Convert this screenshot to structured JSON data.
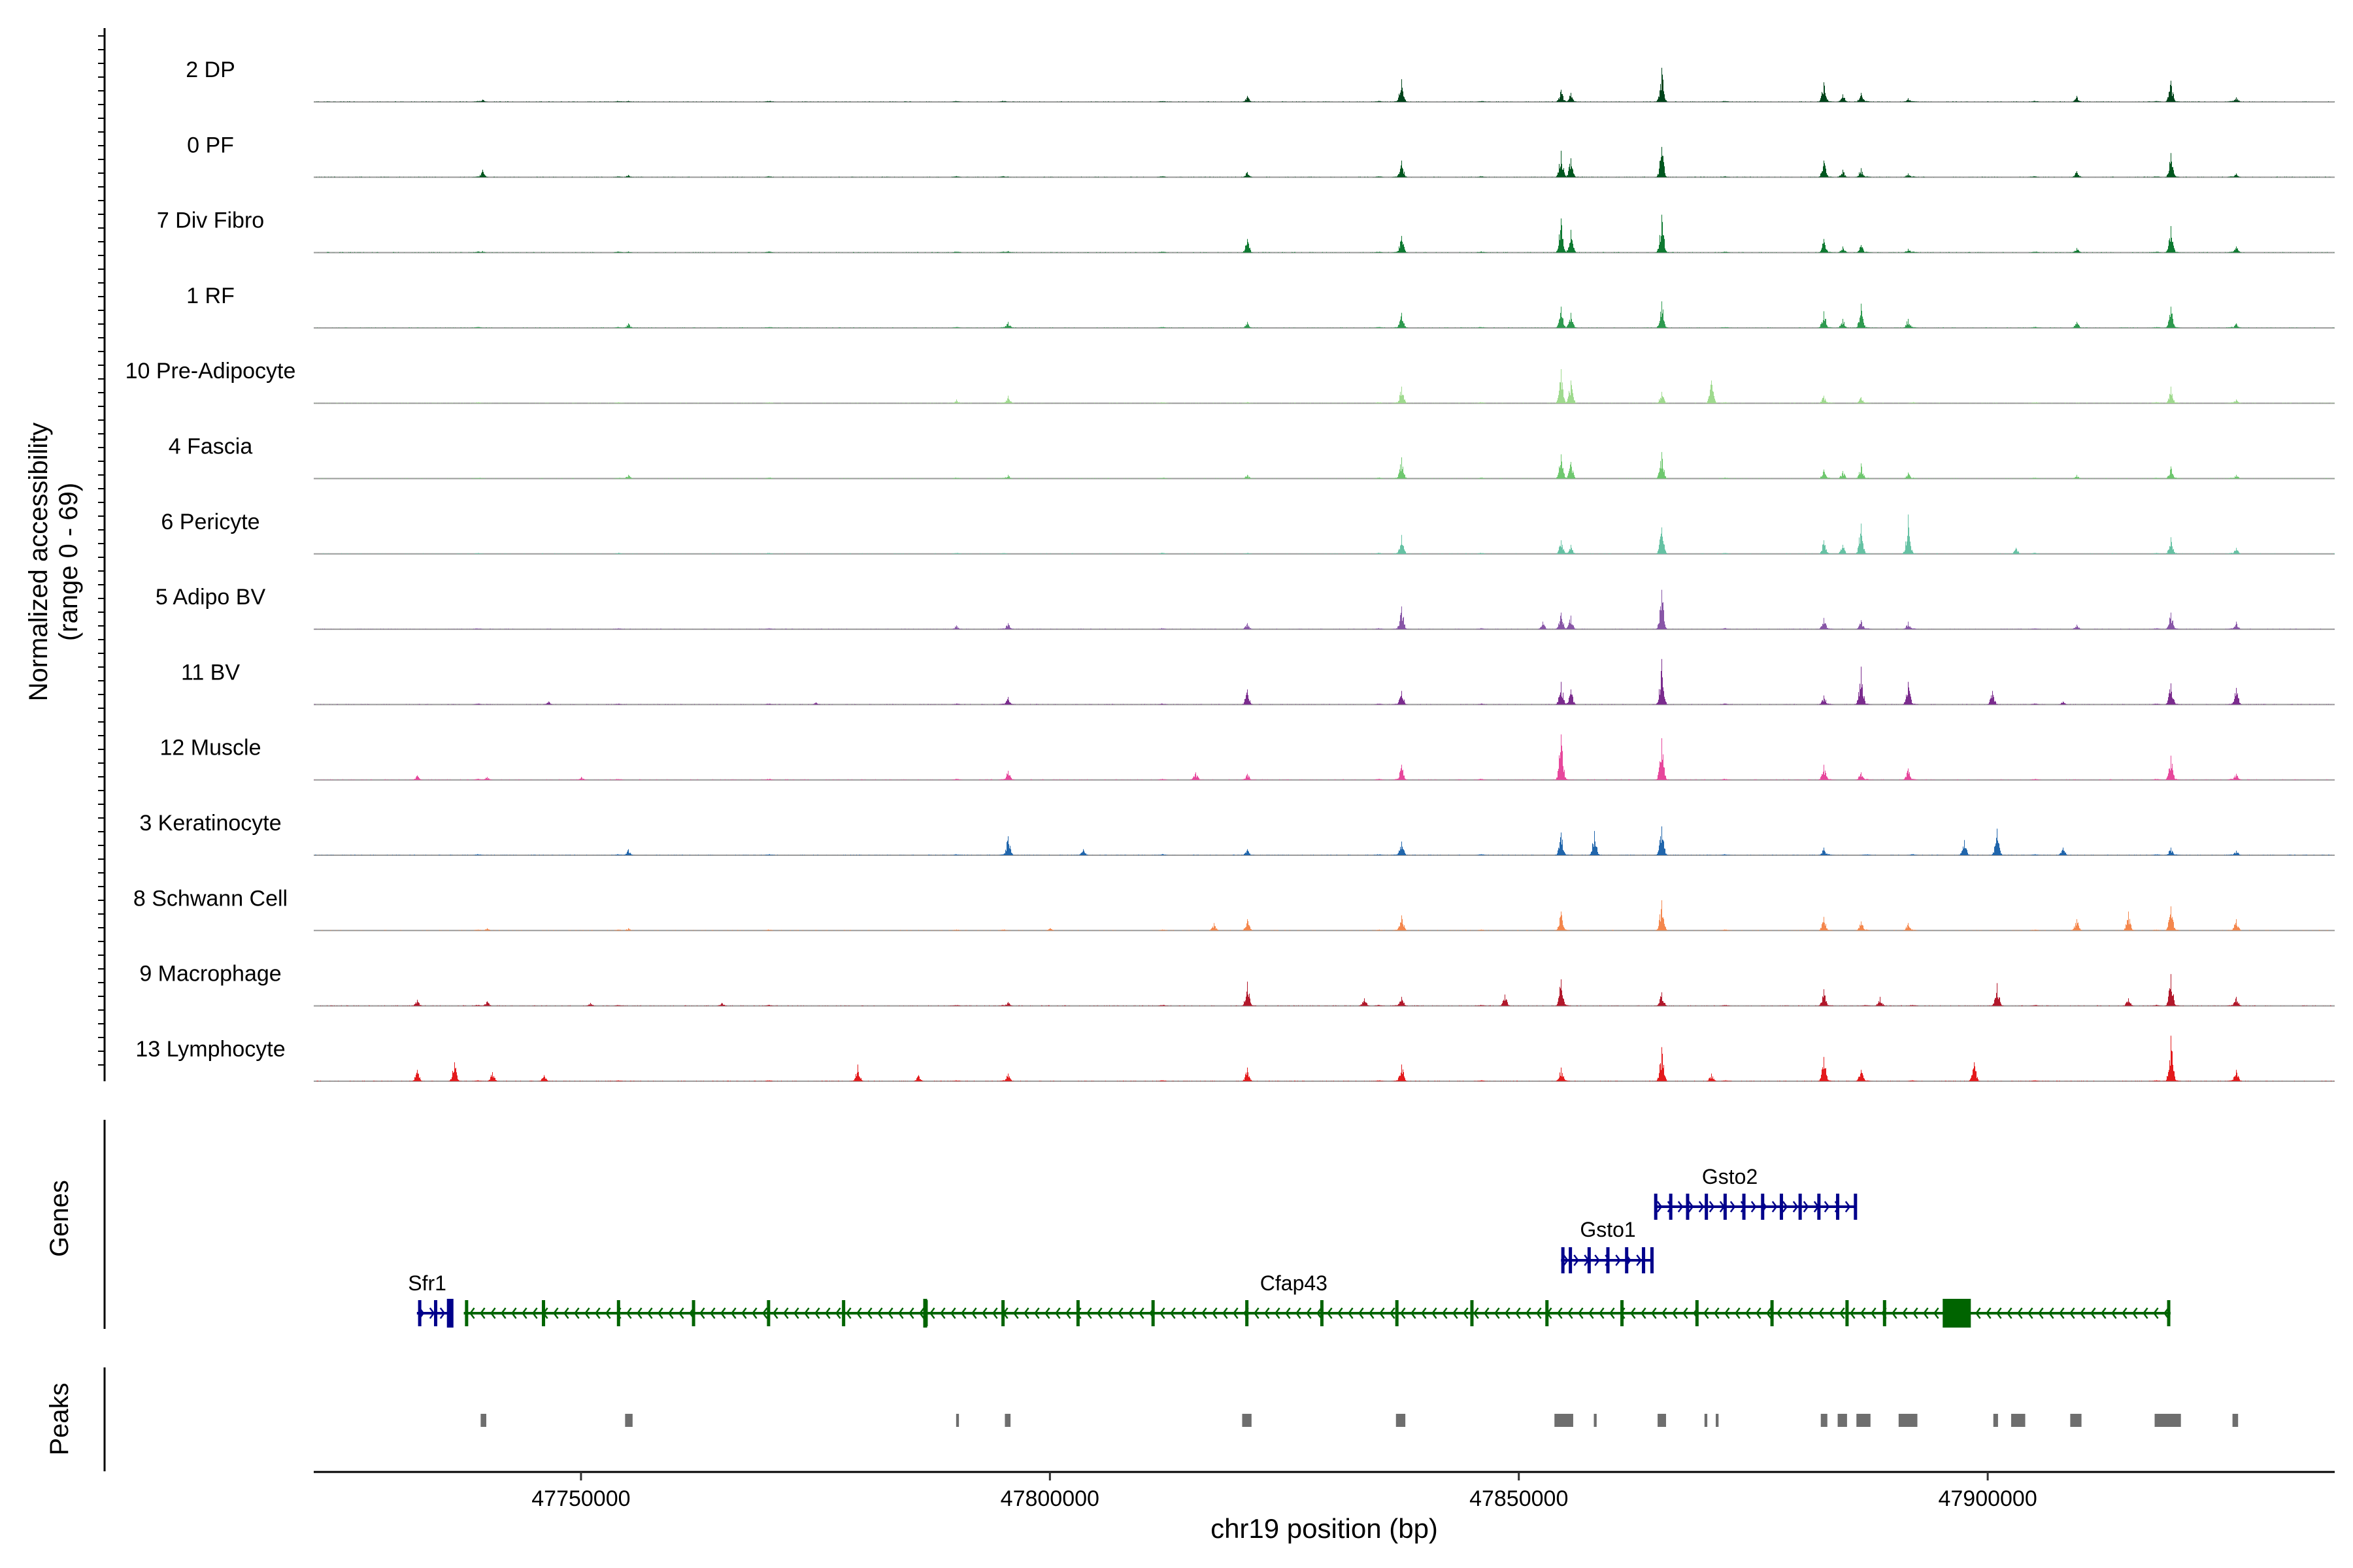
{
  "chart_data": {
    "type": "area",
    "title": "",
    "ylabel": [
      "Normalized accessibility",
      "(range 0 - 69)"
    ],
    "xlabel": "chr19 position (bp)",
    "xlim": [
      47721500,
      47937000
    ],
    "ylim": [
      0,
      69
    ],
    "x_ticks": [
      47750000,
      47800000,
      47850000,
      47900000
    ],
    "x_tick_labels": [
      "47750000",
      "47800000",
      "47850000",
      "47900000"
    ],
    "background_peaks_x": [
      47739000,
      47754000,
      47770000,
      47790000,
      47795000,
      47812000,
      47821000,
      47835000,
      47837000,
      47846000,
      47855000,
      47865000,
      47872000,
      47883000,
      47887000,
      47892000,
      47905000,
      47918000,
      47920000,
      47926000
    ],
    "series": [
      {
        "name": "2 DP",
        "color": "#00441B",
        "peaks": [
          [
            47739500,
            3
          ],
          [
            47755000,
            1.5
          ],
          [
            47821000,
            8
          ],
          [
            47837500,
            30
          ],
          [
            47854500,
            16
          ],
          [
            47855500,
            12
          ],
          [
            47865200,
            45
          ],
          [
            47882500,
            26
          ],
          [
            47884500,
            10
          ],
          [
            47886500,
            12
          ],
          [
            47891500,
            5
          ],
          [
            47909500,
            8
          ],
          [
            47919500,
            28
          ],
          [
            47926500,
            6
          ]
        ]
      },
      {
        "name": "0 PF",
        "color": "#00571F",
        "peaks": [
          [
            47739500,
            10
          ],
          [
            47755000,
            3
          ],
          [
            47821000,
            7
          ],
          [
            47837500,
            22
          ],
          [
            47854500,
            35
          ],
          [
            47855500,
            25
          ],
          [
            47865200,
            40
          ],
          [
            47882500,
            22
          ],
          [
            47884500,
            10
          ],
          [
            47886500,
            12
          ],
          [
            47891500,
            5
          ],
          [
            47909500,
            8
          ],
          [
            47919500,
            32
          ],
          [
            47926500,
            5
          ]
        ]
      },
      {
        "name": "7 Div Fibro",
        "color": "#0E7A31",
        "peaks": [
          [
            47739500,
            2
          ],
          [
            47755000,
            1.5
          ],
          [
            47795500,
            2
          ],
          [
            47821000,
            18
          ],
          [
            47837500,
            22
          ],
          [
            47854500,
            45
          ],
          [
            47855500,
            30
          ],
          [
            47865200,
            50
          ],
          [
            47882500,
            18
          ],
          [
            47884500,
            8
          ],
          [
            47886500,
            10
          ],
          [
            47891500,
            5
          ],
          [
            47909500,
            6
          ],
          [
            47919500,
            35
          ],
          [
            47926500,
            8
          ]
        ]
      },
      {
        "name": "1 RF",
        "color": "#2E9A4F",
        "peaks": [
          [
            47755000,
            6
          ],
          [
            47795500,
            8
          ],
          [
            47821000,
            8
          ],
          [
            47837500,
            20
          ],
          [
            47854500,
            28
          ],
          [
            47855500,
            20
          ],
          [
            47865200,
            35
          ],
          [
            47882500,
            22
          ],
          [
            47884500,
            12
          ],
          [
            47886500,
            32
          ],
          [
            47891500,
            12
          ],
          [
            47909500,
            8
          ],
          [
            47919500,
            28
          ],
          [
            47926500,
            6
          ]
        ]
      },
      {
        "name": "10 Pre-Adipocyte",
        "color": "#9FDA8E",
        "peaks": [
          [
            47790000,
            5
          ],
          [
            47795500,
            10
          ],
          [
            47837500,
            22
          ],
          [
            47854500,
            45
          ],
          [
            47855500,
            30
          ],
          [
            47865200,
            15
          ],
          [
            47870500,
            30
          ],
          [
            47882500,
            10
          ],
          [
            47886500,
            8
          ],
          [
            47919500,
            22
          ],
          [
            47926500,
            5
          ]
        ]
      },
      {
        "name": "4 Fascia",
        "color": "#6FC86F",
        "peaks": [
          [
            47755000,
            5
          ],
          [
            47795500,
            5
          ],
          [
            47821000,
            5
          ],
          [
            47837500,
            28
          ],
          [
            47854500,
            32
          ],
          [
            47855500,
            22
          ],
          [
            47865200,
            35
          ],
          [
            47882500,
            12
          ],
          [
            47884500,
            10
          ],
          [
            47886500,
            20
          ],
          [
            47891500,
            8
          ],
          [
            47909500,
            5
          ],
          [
            47919500,
            16
          ],
          [
            47926500,
            5
          ]
        ]
      },
      {
        "name": "6 Pericyte",
        "color": "#66C2A4",
        "peaks": [
          [
            47837500,
            25
          ],
          [
            47854500,
            18
          ],
          [
            47855500,
            12
          ],
          [
            47865200,
            35
          ],
          [
            47882500,
            18
          ],
          [
            47884500,
            12
          ],
          [
            47886500,
            40
          ],
          [
            47891500,
            52
          ],
          [
            47903000,
            8
          ],
          [
            47919500,
            22
          ],
          [
            47926500,
            8
          ]
        ]
      },
      {
        "name": "5 Adipo BV",
        "color": "#8856A7",
        "peaks": [
          [
            47790000,
            5
          ],
          [
            47795500,
            8
          ],
          [
            47821000,
            8
          ],
          [
            47837500,
            30
          ],
          [
            47852500,
            10
          ],
          [
            47854500,
            22
          ],
          [
            47855500,
            18
          ],
          [
            47865200,
            52
          ],
          [
            47882500,
            15
          ],
          [
            47886500,
            12
          ],
          [
            47891500,
            10
          ],
          [
            47909500,
            6
          ],
          [
            47919500,
            22
          ],
          [
            47926500,
            10
          ]
        ]
      },
      {
        "name": "11 BV",
        "color": "#7B2C8E",
        "peaks": [
          [
            47746500,
            4
          ],
          [
            47775000,
            3
          ],
          [
            47795500,
            10
          ],
          [
            47821000,
            20
          ],
          [
            47837500,
            18
          ],
          [
            47854500,
            30
          ],
          [
            47855500,
            20
          ],
          [
            47865200,
            60
          ],
          [
            47882500,
            12
          ],
          [
            47886500,
            50
          ],
          [
            47891500,
            30
          ],
          [
            47900500,
            18
          ],
          [
            47908000,
            4
          ],
          [
            47919500,
            28
          ],
          [
            47926500,
            22
          ]
        ]
      },
      {
        "name": "12 Muscle",
        "color": "#E7479C",
        "peaks": [
          [
            47732500,
            6
          ],
          [
            47740000,
            4
          ],
          [
            47750000,
            4
          ],
          [
            47795500,
            12
          ],
          [
            47815500,
            10
          ],
          [
            47821000,
            8
          ],
          [
            47837500,
            20
          ],
          [
            47854500,
            60
          ],
          [
            47865200,
            55
          ],
          [
            47882500,
            20
          ],
          [
            47886500,
            10
          ],
          [
            47891500,
            15
          ],
          [
            47919500,
            32
          ],
          [
            47926500,
            8
          ]
        ]
      },
      {
        "name": "3 Keratinocyte",
        "color": "#2166AC",
        "peaks": [
          [
            47755000,
            8
          ],
          [
            47795500,
            25
          ],
          [
            47803500,
            8
          ],
          [
            47821000,
            8
          ],
          [
            47837500,
            18
          ],
          [
            47854500,
            30
          ],
          [
            47858000,
            32
          ],
          [
            47865200,
            38
          ],
          [
            47882500,
            10
          ],
          [
            47897500,
            20
          ],
          [
            47901000,
            35
          ],
          [
            47908000,
            10
          ],
          [
            47919500,
            10
          ],
          [
            47926500,
            6
          ]
        ]
      },
      {
        "name": "8 Schwann Cell",
        "color": "#F4874D",
        "peaks": [
          [
            47740000,
            3
          ],
          [
            47755000,
            3
          ],
          [
            47800000,
            3
          ],
          [
            47817500,
            10
          ],
          [
            47821000,
            15
          ],
          [
            47837500,
            20
          ],
          [
            47854500,
            25
          ],
          [
            47865200,
            40
          ],
          [
            47882500,
            18
          ],
          [
            47886500,
            12
          ],
          [
            47891500,
            10
          ],
          [
            47909500,
            15
          ],
          [
            47915000,
            25
          ],
          [
            47919500,
            32
          ],
          [
            47926500,
            15
          ]
        ]
      },
      {
        "name": "9 Macrophage",
        "color": "#B2182B",
        "peaks": [
          [
            47732500,
            8
          ],
          [
            47740000,
            6
          ],
          [
            47751000,
            4
          ],
          [
            47765000,
            4
          ],
          [
            47795500,
            5
          ],
          [
            47821000,
            32
          ],
          [
            47833500,
            10
          ],
          [
            47837500,
            12
          ],
          [
            47848500,
            15
          ],
          [
            47854500,
            35
          ],
          [
            47865200,
            18
          ],
          [
            47882500,
            22
          ],
          [
            47888500,
            12
          ],
          [
            47901000,
            30
          ],
          [
            47915000,
            10
          ],
          [
            47919500,
            42
          ],
          [
            47926500,
            12
          ]
        ]
      },
      {
        "name": "13 Lymphocyte",
        "color": "#E41A1C",
        "peaks": [
          [
            47732500,
            15
          ],
          [
            47736500,
            25
          ],
          [
            47740500,
            12
          ],
          [
            47746000,
            8
          ],
          [
            47779500,
            22
          ],
          [
            47786000,
            8
          ],
          [
            47795500,
            10
          ],
          [
            47821000,
            18
          ],
          [
            47837500,
            22
          ],
          [
            47854500,
            18
          ],
          [
            47865200,
            45
          ],
          [
            47870500,
            10
          ],
          [
            47882500,
            32
          ],
          [
            47886500,
            15
          ],
          [
            47898500,
            25
          ],
          [
            47919500,
            60
          ],
          [
            47926500,
            15
          ]
        ]
      }
    ],
    "genes_track": {
      "label": "Genes",
      "genes": [
        {
          "name": "Gsto2",
          "start": 47864500,
          "end": 47886000,
          "strand": "+",
          "color": "#00008B",
          "exons": [
            47864600,
            47866200,
            47868000,
            47870000,
            47872000,
            47874000,
            47876000,
            47878000,
            47880000,
            47882000,
            47884000,
            47885900
          ]
        },
        {
          "name": "Gsto1",
          "start": 47854500,
          "end": 47864300,
          "strand": "+",
          "color": "#00008B",
          "exons": [
            47854700,
            47855500,
            47857500,
            47859500,
            47861500,
            47863300,
            47864200
          ]
        },
        {
          "name": "Sfr1",
          "start": 47732500,
          "end": 47736300,
          "strand": "+",
          "color": "#00008B",
          "exons": [
            47732800,
            47734500,
            47735900
          ]
        },
        {
          "name": "Cfap43",
          "start": 47737500,
          "end": 47919500,
          "strand": "-",
          "color": "#006400",
          "exons": [
            47737800,
            47746000,
            47754000,
            47762000,
            47770000,
            47778000,
            47786800,
            47795000,
            47803000,
            47811000,
            47821000,
            47829000,
            47837000,
            47845000,
            47853000,
            47861000,
            47869000,
            47877000,
            47885000,
            47889000,
            47919300
          ]
        }
      ]
    },
    "peaks_track": {
      "label": "Peaks",
      "regions": [
        [
          47739300,
          47739900
        ],
        [
          47754700,
          47755500
        ],
        [
          47790000,
          47790300
        ],
        [
          47795200,
          47795800
        ],
        [
          47820500,
          47821500
        ],
        [
          47836900,
          47837900
        ],
        [
          47853800,
          47855800
        ],
        [
          47858000,
          47858300
        ],
        [
          47864800,
          47865700
        ],
        [
          47869800,
          47870100
        ],
        [
          47871000,
          47871300
        ],
        [
          47882200,
          47882900
        ],
        [
          47884000,
          47885000
        ],
        [
          47886000,
          47887500
        ],
        [
          47890500,
          47892500
        ],
        [
          47900600,
          47901100
        ],
        [
          47902500,
          47904000
        ],
        [
          47908800,
          47910000
        ],
        [
          47917800,
          47920600
        ],
        [
          47926100,
          47926700
        ]
      ]
    }
  }
}
